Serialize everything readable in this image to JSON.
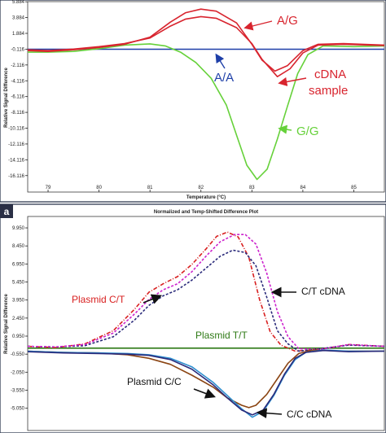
{
  "chart_data": [
    {
      "type": "line",
      "title": "",
      "xlabel": "Temperature (°C)",
      "ylabel": "Relative Signal Difference",
      "xlim": [
        78.6,
        85.6
      ],
      "ylim": [
        -18.2,
        5.9
      ],
      "x_ticks": [
        79,
        80,
        81,
        82,
        83,
        84,
        85
      ],
      "y_ticks": [
        5.884,
        3.884,
        1.884,
        -0.116,
        -2.116,
        -4.116,
        -6.116,
        -8.116,
        -10.116,
        -12.116,
        -14.116,
        -16.116
      ],
      "y_tick_labels": [
        "5.884",
        "3.884",
        "1.884",
        "-0.116",
        "-2.116",
        "-4.116",
        "-6.116",
        "-8.116",
        "-10.116",
        "-12.116",
        "-14.116",
        "-16.116"
      ],
      "grid": false,
      "series": [
        {
          "name": "A/A",
          "color": "#1e3fa8",
          "points": [
            [
              78.6,
              -0.12
            ],
            [
              85.6,
              -0.12
            ]
          ]
        },
        {
          "name": "G/G",
          "color": "#66d13a",
          "points": [
            [
              78.6,
              -0.5
            ],
            [
              79,
              -0.5
            ],
            [
              79.5,
              -0.4
            ],
            [
              80,
              -0.05
            ],
            [
              80.5,
              0.4
            ],
            [
              81,
              0.55
            ],
            [
              81.3,
              0.3
            ],
            [
              81.6,
              -0.5
            ],
            [
              81.9,
              -1.8
            ],
            [
              82.2,
              -3.8
            ],
            [
              82.5,
              -7.2
            ],
            [
              82.7,
              -11
            ],
            [
              82.9,
              -14.8
            ],
            [
              83.1,
              -16.6
            ],
            [
              83.3,
              -15.3
            ],
            [
              83.5,
              -11.5
            ],
            [
              83.7,
              -7.3
            ],
            [
              83.9,
              -3.2
            ],
            [
              84.1,
              -0.8
            ],
            [
              84.4,
              0.3
            ],
            [
              85,
              0.2
            ],
            [
              85.6,
              0.3
            ]
          ]
        },
        {
          "name": "A/G",
          "color": "#d8242e",
          "points": [
            [
              78.6,
              -0.3
            ],
            [
              79,
              -0.4
            ],
            [
              79.5,
              -0.2
            ],
            [
              80,
              0.1
            ],
            [
              80.5,
              0.5
            ],
            [
              81,
              1.4
            ],
            [
              81.4,
              3.3
            ],
            [
              81.7,
              4.5
            ],
            [
              82,
              4.95
            ],
            [
              82.3,
              4.7
            ],
            [
              82.7,
              3.2
            ],
            [
              83,
              0.5
            ],
            [
              83.2,
              -1.5
            ],
            [
              83.45,
              -2.9
            ],
            [
              83.7,
              -2.2
            ],
            [
              84,
              -0.3
            ],
            [
              84.3,
              0.5
            ],
            [
              84.8,
              0.6
            ],
            [
              85.6,
              0.4
            ]
          ]
        },
        {
          "name": "cDNA sample",
          "color": "#d8242e",
          "points": [
            [
              78.6,
              -0.2
            ],
            [
              79,
              -0.3
            ],
            [
              79.5,
              -0.1
            ],
            [
              80,
              0.2
            ],
            [
              80.5,
              0.6
            ],
            [
              81,
              1.3
            ],
            [
              81.4,
              2.8
            ],
            [
              81.7,
              3.7
            ],
            [
              82,
              4.0
            ],
            [
              82.3,
              3.8
            ],
            [
              82.7,
              2.6
            ],
            [
              83,
              0.6
            ],
            [
              83.2,
              -1.4
            ],
            [
              83.5,
              -3.6
            ],
            [
              83.75,
              -2.6
            ],
            [
              84,
              -0.6
            ],
            [
              84.3,
              0.4
            ],
            [
              84.8,
              0.5
            ],
            [
              85.6,
              0.35
            ]
          ]
        }
      ],
      "annotations": [
        {
          "text": "A/G",
          "color": "#d8242e"
        },
        {
          "text": "A/A",
          "color": "#1e3fa8"
        },
        {
          "text": "cDNA",
          "color": "#d8242e"
        },
        {
          "text": "sample",
          "color": "#d8242e"
        },
        {
          "text": "G/G",
          "color": "#66d13a"
        }
      ]
    },
    {
      "type": "line",
      "title": "Normalized and Temp-Shifted Difference Plot",
      "xlabel": "",
      "ylabel": "Relative Signal Difference",
      "ylim": [
        -6.9,
        10.9
      ],
      "y_ticks": [
        9.95,
        8.45,
        6.95,
        5.45,
        3.95,
        2.45,
        0.95,
        -0.55,
        -2.05,
        -3.55,
        -5.05
      ],
      "y_tick_labels": [
        "9.950",
        "8.450",
        "6.950",
        "5.450",
        "3.950",
        "2.450",
        "0.950",
        "-0.550",
        "-2.050",
        "-3.550",
        "-5.050"
      ],
      "grid": false,
      "series": [
        {
          "name": "Plasmid T/T",
          "color": "#2f7a16",
          "points": [
            [
              0,
              -0.05
            ],
            [
              1,
              -0.05
            ]
          ]
        },
        {
          "name": "Plasmid C/T",
          "color": "#d82020",
          "points": [
            [
              0,
              0.1
            ],
            [
              0.08,
              0.0
            ],
            [
              0.16,
              0.3
            ],
            [
              0.24,
              1.4
            ],
            [
              0.3,
              3.2
            ],
            [
              0.34,
              4.6
            ],
            [
              0.38,
              5.3
            ],
            [
              0.42,
              5.9
            ],
            [
              0.46,
              6.9
            ],
            [
              0.5,
              8.2
            ],
            [
              0.53,
              9.25
            ],
            [
              0.56,
              9.6
            ],
            [
              0.59,
              9.2
            ],
            [
              0.62,
              7.5
            ],
            [
              0.65,
              4.0
            ],
            [
              0.68,
              1.3
            ],
            [
              0.71,
              0.2
            ],
            [
              0.75,
              -0.3
            ],
            [
              0.82,
              -0.15
            ],
            [
              0.9,
              0.25
            ],
            [
              1,
              0.1
            ]
          ]
        },
        {
          "name": "C/T cDNA",
          "color": "#2a2a7a",
          "points": [
            [
              0,
              0.1
            ],
            [
              0.08,
              0.05
            ],
            [
              0.16,
              0.15
            ],
            [
              0.24,
              0.9
            ],
            [
              0.3,
              2.3
            ],
            [
              0.34,
              3.5
            ],
            [
              0.38,
              4.3
            ],
            [
              0.42,
              4.8
            ],
            [
              0.46,
              5.6
            ],
            [
              0.5,
              6.6
            ],
            [
              0.54,
              7.6
            ],
            [
              0.575,
              8.1
            ],
            [
              0.61,
              7.9
            ],
            [
              0.64,
              6.8
            ],
            [
              0.67,
              4.2
            ],
            [
              0.7,
              1.4
            ],
            [
              0.73,
              0.3
            ],
            [
              0.76,
              -0.3
            ],
            [
              0.82,
              -0.1
            ],
            [
              0.9,
              0.2
            ],
            [
              1,
              0.1
            ]
          ]
        },
        {
          "name": "",
          "color": "#cc22cc",
          "points": [
            [
              0,
              0.1
            ],
            [
              0.08,
              0.05
            ],
            [
              0.16,
              0.25
            ],
            [
              0.24,
              1.2
            ],
            [
              0.3,
              2.8
            ],
            [
              0.34,
              4.0
            ],
            [
              0.38,
              4.8
            ],
            [
              0.42,
              5.3
            ],
            [
              0.46,
              6.3
            ],
            [
              0.5,
              7.6
            ],
            [
              0.54,
              8.8
            ],
            [
              0.58,
              9.4
            ],
            [
              0.61,
              9.4
            ],
            [
              0.64,
              8.6
            ],
            [
              0.67,
              6.2
            ],
            [
              0.7,
              3.0
            ],
            [
              0.73,
              0.9
            ],
            [
              0.76,
              -0.1
            ],
            [
              0.82,
              -0.15
            ],
            [
              0.9,
              0.25
            ],
            [
              1,
              0.1
            ]
          ]
        },
        {
          "name": "Plasmid C/C",
          "color": "#8b4513",
          "points": [
            [
              0,
              -0.3
            ],
            [
              0.1,
              -0.4
            ],
            [
              0.2,
              -0.45
            ],
            [
              0.28,
              -0.6
            ],
            [
              0.34,
              -0.9
            ],
            [
              0.4,
              -1.4
            ],
            [
              0.46,
              -2.3
            ],
            [
              0.52,
              -3.3
            ],
            [
              0.56,
              -4.2
            ],
            [
              0.6,
              -4.8
            ],
            [
              0.62,
              -5.0
            ],
            [
              0.64,
              -4.8
            ],
            [
              0.67,
              -3.9
            ],
            [
              0.7,
              -2.6
            ],
            [
              0.73,
              -1.3
            ],
            [
              0.76,
              -0.5
            ],
            [
              0.8,
              -0.2
            ],
            [
              0.88,
              -0.3
            ],
            [
              1,
              -0.3
            ]
          ]
        },
        {
          "name": "C/C cDNA",
          "color": "#2e8fcf",
          "points": [
            [
              0,
              -0.3
            ],
            [
              0.1,
              -0.4
            ],
            [
              0.2,
              -0.45
            ],
            [
              0.28,
              -0.5
            ],
            [
              0.34,
              -0.6
            ],
            [
              0.4,
              -0.9
            ],
            [
              0.46,
              -1.6
            ],
            [
              0.52,
              -2.9
            ],
            [
              0.56,
              -4.0
            ],
            [
              0.6,
              -5.1
            ],
            [
              0.63,
              -5.8
            ],
            [
              0.66,
              -5.3
            ],
            [
              0.69,
              -4.0
            ],
            [
              0.72,
              -2.3
            ],
            [
              0.75,
              -1.0
            ],
            [
              0.78,
              -0.4
            ],
            [
              0.83,
              -0.2
            ],
            [
              0.9,
              -0.3
            ],
            [
              1,
              -0.3
            ]
          ]
        },
        {
          "name": "",
          "color": "#2a2a7a",
          "points": [
            [
              0,
              -0.35
            ],
            [
              0.1,
              -0.45
            ],
            [
              0.2,
              -0.5
            ],
            [
              0.28,
              -0.55
            ],
            [
              0.34,
              -0.65
            ],
            [
              0.4,
              -1.0
            ],
            [
              0.46,
              -1.8
            ],
            [
              0.52,
              -3.1
            ],
            [
              0.56,
              -4.2
            ],
            [
              0.6,
              -5.2
            ],
            [
              0.63,
              -5.6
            ],
            [
              0.66,
              -5.2
            ],
            [
              0.69,
              -3.9
            ],
            [
              0.72,
              -2.2
            ],
            [
              0.75,
              -0.9
            ],
            [
              0.78,
              -0.4
            ],
            [
              0.83,
              -0.25
            ],
            [
              0.9,
              -0.35
            ],
            [
              1,
              -0.3
            ]
          ]
        }
      ],
      "annotations": [
        {
          "text": "Plasmid C/T",
          "color": "#d82020"
        },
        {
          "text": "C/T cDNA",
          "color": "#111111"
        },
        {
          "text": "Plasmid T/T",
          "color": "#2f7a16"
        },
        {
          "text": "Plasmid C/C",
          "color": "#111111"
        },
        {
          "text": "C/C cDNA",
          "color": "#111111"
        }
      ]
    }
  ],
  "panel_labels": {
    "top": "",
    "bottom": "a"
  },
  "colors": {
    "frame": "#1f2a44",
    "panel_label_bg": "#2a2f45",
    "axis_line": "#202020"
  }
}
